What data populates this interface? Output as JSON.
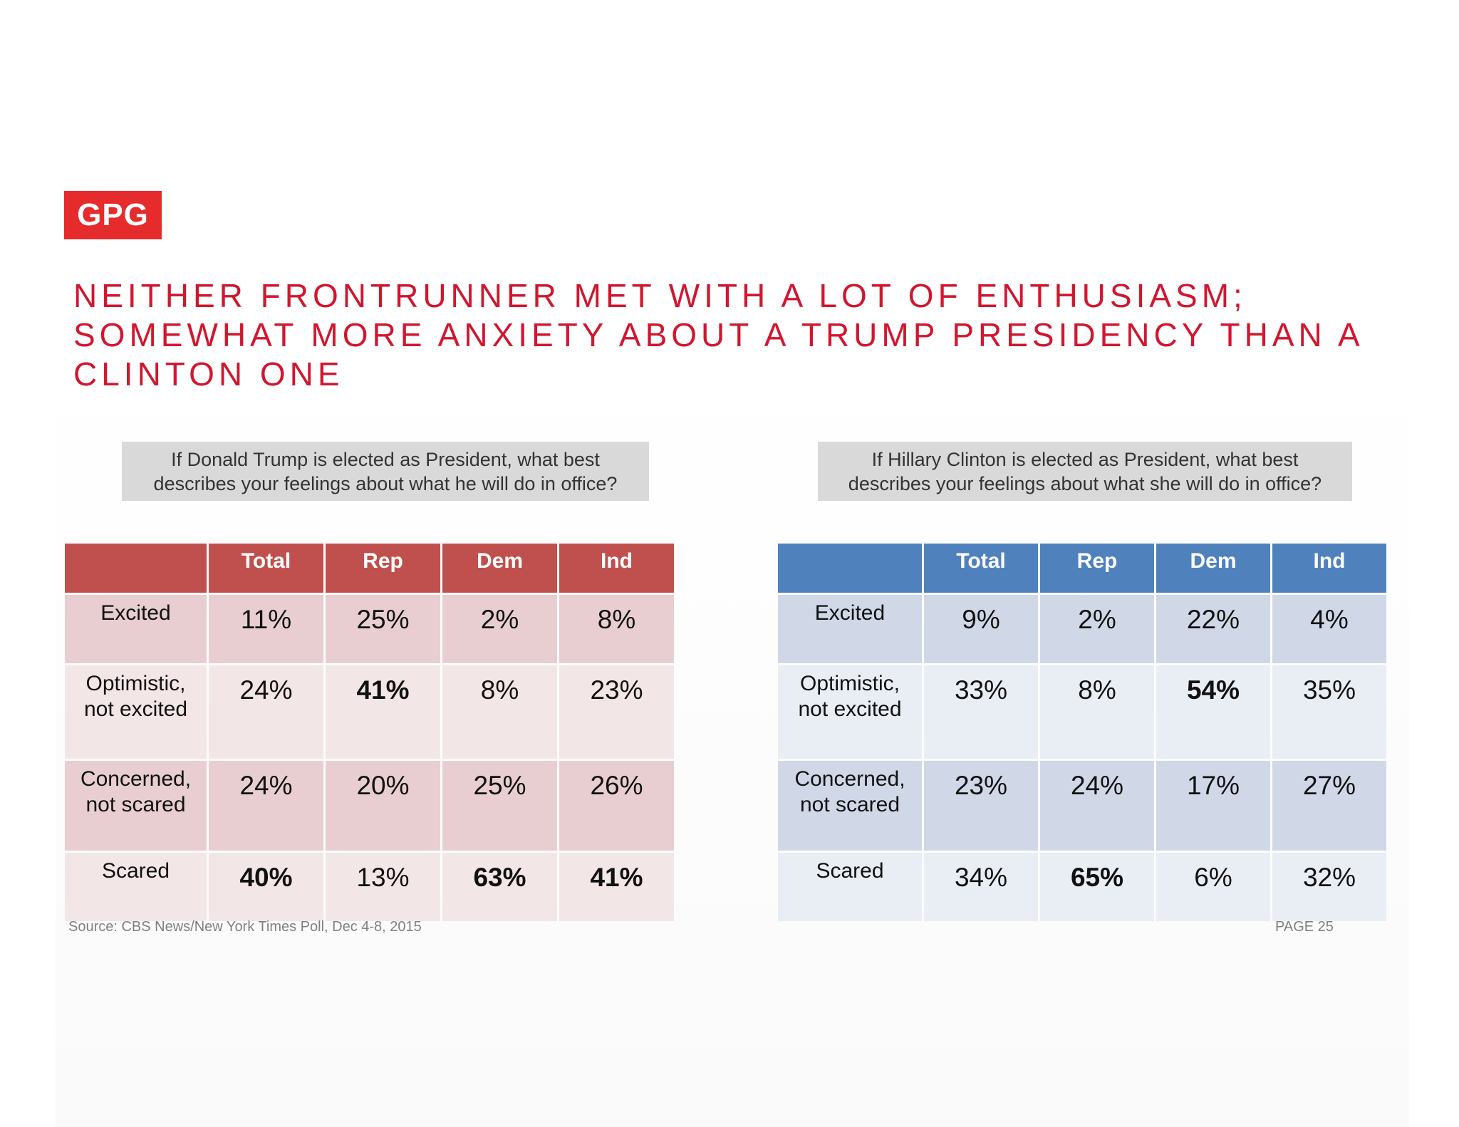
{
  "logo": {
    "text": "GPG",
    "color": "#e62b2c"
  },
  "title": {
    "lines": [
      "NEITHER FRONTRUNNER MET WITH A LOT OF ENTHUSIASM;",
      "SOMEWHAT MORE ANXIETY ABOUT A TRUMP PRESIDENCY THAN A",
      "CLINTON ONE"
    ],
    "color": "#d0172f"
  },
  "trump": {
    "question": [
      "If Donald Trump is elected as President, what best",
      "describes your feelings about what he will  do in office?"
    ],
    "header_color": "#c0504d",
    "columns": [
      "",
      "Total",
      "Rep",
      "Dem",
      "Ind"
    ],
    "rows": [
      {
        "label": [
          "Excited"
        ],
        "values": [
          "11%",
          "25%",
          "2%",
          "8%"
        ],
        "bold": [
          false,
          false,
          false,
          false
        ]
      },
      {
        "label": [
          "Optimistic,",
          "not excited"
        ],
        "values": [
          "24%",
          "41%",
          "8%",
          "23%"
        ],
        "bold": [
          false,
          true,
          false,
          false
        ]
      },
      {
        "label": [
          "Concerned,",
          "not scared"
        ],
        "values": [
          "24%",
          "20%",
          "25%",
          "26%"
        ],
        "bold": [
          false,
          false,
          false,
          false
        ]
      },
      {
        "label": [
          "Scared"
        ],
        "values": [
          "40%",
          "13%",
          "63%",
          "41%"
        ],
        "bold": [
          true,
          false,
          true,
          true
        ]
      }
    ]
  },
  "clinton": {
    "question": [
      "If Hillary  Clinton is elected as President, what best",
      "describes your feelings about what she will  do in office?"
    ],
    "header_color": "#4f81bd",
    "columns": [
      "",
      "Total",
      "Rep",
      "Dem",
      "Ind"
    ],
    "rows": [
      {
        "label": [
          "Excited"
        ],
        "values": [
          "9%",
          "2%",
          "22%",
          "4%"
        ],
        "bold": [
          false,
          false,
          false,
          false
        ]
      },
      {
        "label": [
          "Optimistic,",
          "not excited"
        ],
        "values": [
          "33%",
          "8%",
          "54%",
          "35%"
        ],
        "bold": [
          false,
          false,
          true,
          false
        ]
      },
      {
        "label": [
          "Concerned,",
          "not scared"
        ],
        "values": [
          "23%",
          "24%",
          "17%",
          "27%"
        ],
        "bold": [
          false,
          false,
          false,
          false
        ]
      },
      {
        "label": [
          "Scared"
        ],
        "values": [
          "34%",
          "65%",
          "6%",
          "32%"
        ],
        "bold": [
          false,
          true,
          false,
          false
        ]
      }
    ]
  },
  "footer": {
    "source": "Source: CBS News/New York Times Poll, Dec 4-8, 2015",
    "page": "PAGE 25"
  }
}
